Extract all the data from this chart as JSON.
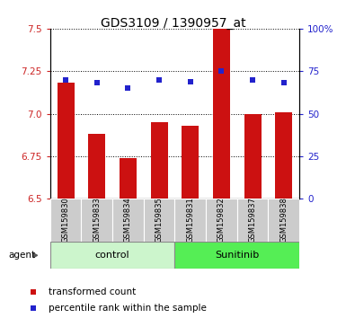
{
  "title": "GDS3109 / 1390957_at",
  "samples": [
    "GSM159830",
    "GSM159833",
    "GSM159834",
    "GSM159835",
    "GSM159831",
    "GSM159832",
    "GSM159837",
    "GSM159838"
  ],
  "bar_values": [
    7.18,
    6.88,
    6.74,
    6.95,
    6.93,
    7.5,
    7.0,
    7.01
  ],
  "dot_percentiles": [
    70,
    68,
    65,
    70,
    69,
    75,
    70,
    68
  ],
  "ylim_left": [
    6.5,
    7.5
  ],
  "ylim_right": [
    0,
    100
  ],
  "yticks_left": [
    6.5,
    6.75,
    7.0,
    7.25,
    7.5
  ],
  "yticks_right": [
    0,
    25,
    50,
    75,
    100
  ],
  "ytick_labels_right": [
    "0",
    "25",
    "50",
    "75",
    "100%"
  ],
  "group_labels": [
    "control",
    "Sunitinib"
  ],
  "group_colors": [
    "#ccf5cc",
    "#55ee55"
  ],
  "bar_color": "#cc1111",
  "dot_color": "#2222cc",
  "bar_bottom": 6.5,
  "legend_items": [
    "transformed count",
    "percentile rank within the sample"
  ],
  "title_fontsize": 10,
  "tick_fontsize": 7.5,
  "left_axis_color": "#cc2222",
  "right_axis_color": "#2222cc",
  "sample_box_color": "#cccccc",
  "bar_width": 0.55
}
